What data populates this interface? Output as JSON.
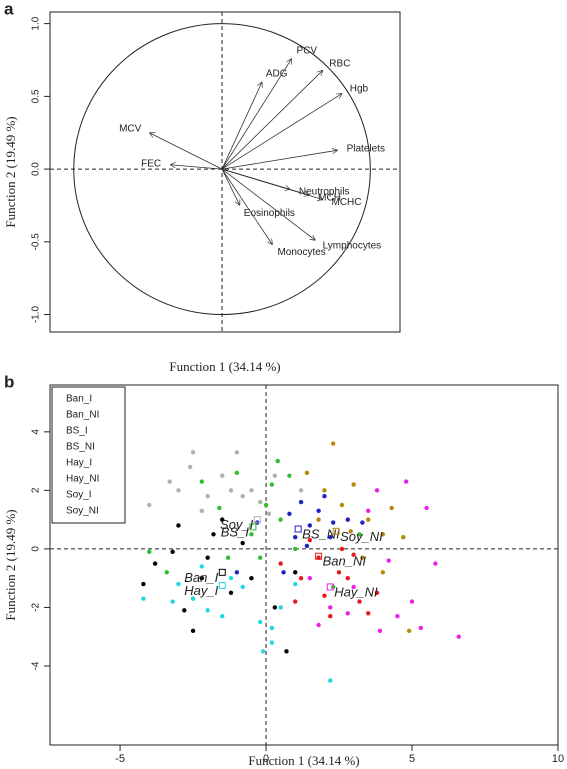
{
  "chart_data": [
    {
      "type": "biplot",
      "panel": "a",
      "xlabel": "Function 1 (34.14 %)",
      "ylabel": "Function 2 (19.49 %)",
      "xlim": [
        -1.16,
        1.2
      ],
      "ylim": [
        -1.12,
        1.08
      ],
      "yticks": [
        {
          "value": -1.0,
          "label": "-1.0"
        },
        -0.5,
        {
          "value": 0.0,
          "label": "0.0"
        },
        0.5,
        {
          "value": 1.0,
          "label": "1.0"
        }
      ],
      "color": "#333333",
      "labels": [
        "PCV",
        "RBC",
        "ADG",
        "Hgb",
        "MCV",
        "FEC",
        "Platelets",
        "MCH",
        "MCHC",
        "Neutrophils",
        "Eosinophils",
        "Monocytes",
        "Lymphocytes"
      ],
      "x": [
        0.47,
        0.68,
        0.27,
        0.81,
        -0.49,
        -0.35,
        0.78,
        0.59,
        0.68,
        0.46,
        0.12,
        0.34,
        0.63
      ],
      "y": [
        0.76,
        0.68,
        0.6,
        0.52,
        0.25,
        0.03,
        0.13,
        -0.18,
        -0.21,
        -0.14,
        -0.25,
        -0.52,
        -0.49
      ]
    },
    {
      "type": "scatter",
      "panel": "b",
      "xlabel": "Function 1 (34.14 %)",
      "ylabel": "Function 2 (19.49 %)",
      "xlim": [
        -7.4,
        10.0
      ],
      "ylim": [
        -6.7,
        5.6
      ],
      "xticks": [
        -5,
        0,
        5,
        10
      ],
      "yticks": [
        -4,
        -2,
        0,
        2,
        4
      ],
      "legend": "upper left",
      "series": [
        {
          "name": "Ban_I",
          "color": "#000000",
          "centroid": [
            -1.5,
            -0.8
          ],
          "x": [
            -4.2,
            -3.8,
            -3.0,
            -2.8,
            -2.5,
            -2.0,
            -1.5,
            -1.2,
            -0.8,
            -0.5,
            0.3,
            0.7,
            -3.2,
            -2.2,
            1.0,
            -1.8
          ],
          "y": [
            -1.2,
            -0.5,
            0.8,
            -2.1,
            -2.8,
            -0.3,
            1.0,
            -1.5,
            0.2,
            -1.0,
            -2.0,
            -3.5,
            -0.1,
            -1.0,
            -0.8,
            0.5
          ]
        },
        {
          "name": "Ban_NI",
          "color": "#e8191c",
          "centroid": [
            1.8,
            -0.25
          ],
          "x": [
            0.5,
            1.2,
            1.8,
            2.2,
            2.0,
            2.8,
            3.2,
            3.5,
            1.5,
            2.5,
            3.0,
            3.8,
            1.0,
            2.6
          ],
          "y": [
            -0.5,
            -1.0,
            -0.3,
            -2.3,
            -1.6,
            -1.0,
            -1.8,
            -2.2,
            0.3,
            -0.8,
            -0.2,
            -1.5,
            -1.8,
            0.0
          ]
        },
        {
          "name": "BS_I",
          "color": "#2fbf2f",
          "centroid": [
            -0.45,
            0.75
          ],
          "x": [
            -4.0,
            -3.4,
            -2.2,
            -1.6,
            -1.0,
            -0.5,
            0.0,
            0.2,
            0.4,
            0.5,
            -0.2,
            0.8,
            1.0,
            -1.3,
            2.3,
            3.2
          ],
          "y": [
            -0.1,
            -0.8,
            2.3,
            1.4,
            2.6,
            0.5,
            1.5,
            2.2,
            3.0,
            1.0,
            -0.3,
            2.5,
            0.0,
            -0.3,
            -1.3,
            0.5
          ]
        },
        {
          "name": "BS_NI",
          "color": "#2020c8",
          "centroid": [
            1.1,
            0.68
          ],
          "x": [
            0.8,
            1.2,
            1.5,
            1.8,
            2.0,
            1.0,
            2.3,
            0.6,
            -1.0,
            2.8,
            1.4,
            -0.3,
            3.3,
            2.2
          ],
          "y": [
            1.2,
            1.6,
            0.8,
            1.3,
            1.8,
            0.4,
            0.9,
            -0.8,
            -0.8,
            1.0,
            0.1,
            0.9,
            0.9,
            0.4
          ]
        },
        {
          "name": "Hay_I",
          "color": "#22d8e0",
          "centroid": [
            -1.5,
            -1.25
          ],
          "x": [
            -4.2,
            -3.2,
            -3.0,
            -2.5,
            -2.0,
            -1.5,
            -1.2,
            -0.8,
            -0.2,
            0.2,
            -0.1,
            0.5,
            1.0,
            -2.2,
            0.2,
            2.2
          ],
          "y": [
            -1.7,
            -1.8,
            -1.2,
            -1.7,
            -2.1,
            -2.3,
            -1.0,
            -1.3,
            -2.5,
            -2.7,
            -3.5,
            -2.0,
            -1.2,
            -0.6,
            -3.2,
            -4.5
          ]
        },
        {
          "name": "Hay_NI",
          "color": "#e820e8",
          "centroid": [
            2.2,
            -1.3
          ],
          "x": [
            1.5,
            2.2,
            3.0,
            3.5,
            3.8,
            4.2,
            4.5,
            4.8,
            5.0,
            5.3,
            5.5,
            5.8,
            6.6,
            3.9,
            2.8,
            1.8
          ],
          "y": [
            -1.0,
            -2.0,
            -1.3,
            1.3,
            2.0,
            -0.4,
            -2.3,
            2.3,
            -1.8,
            -2.7,
            1.4,
            -0.5,
            -3.0,
            -2.8,
            -2.2,
            -2.6
          ]
        },
        {
          "name": "Soy_I",
          "color": "#b0b0b0",
          "centroid": [
            -0.3,
            1.0
          ],
          "x": [
            -4.0,
            -3.3,
            -3.0,
            -2.6,
            -2.2,
            -2.0,
            -1.5,
            -1.0,
            -0.8,
            -0.5,
            -0.2,
            0.3,
            -2.5,
            -1.2,
            0.1,
            1.2
          ],
          "y": [
            1.5,
            2.3,
            2.0,
            2.8,
            1.3,
            1.8,
            2.5,
            3.3,
            1.8,
            2.0,
            1.6,
            2.5,
            3.3,
            2.0,
            1.2,
            2.0
          ]
        },
        {
          "name": "Soy_NI",
          "color": "#b8860b",
          "centroid": [
            2.4,
            0.6
          ],
          "x": [
            2.3,
            2.0,
            2.6,
            3.0,
            3.5,
            1.8,
            2.9,
            4.0,
            4.3,
            4.7,
            3.3,
            4.9,
            4.0,
            1.4
          ],
          "y": [
            3.6,
            2.0,
            1.5,
            2.2,
            1.0,
            1.0,
            0.6,
            0.5,
            1.4,
            0.4,
            -0.3,
            -2.8,
            -0.8,
            2.6
          ]
        }
      ]
    }
  ]
}
